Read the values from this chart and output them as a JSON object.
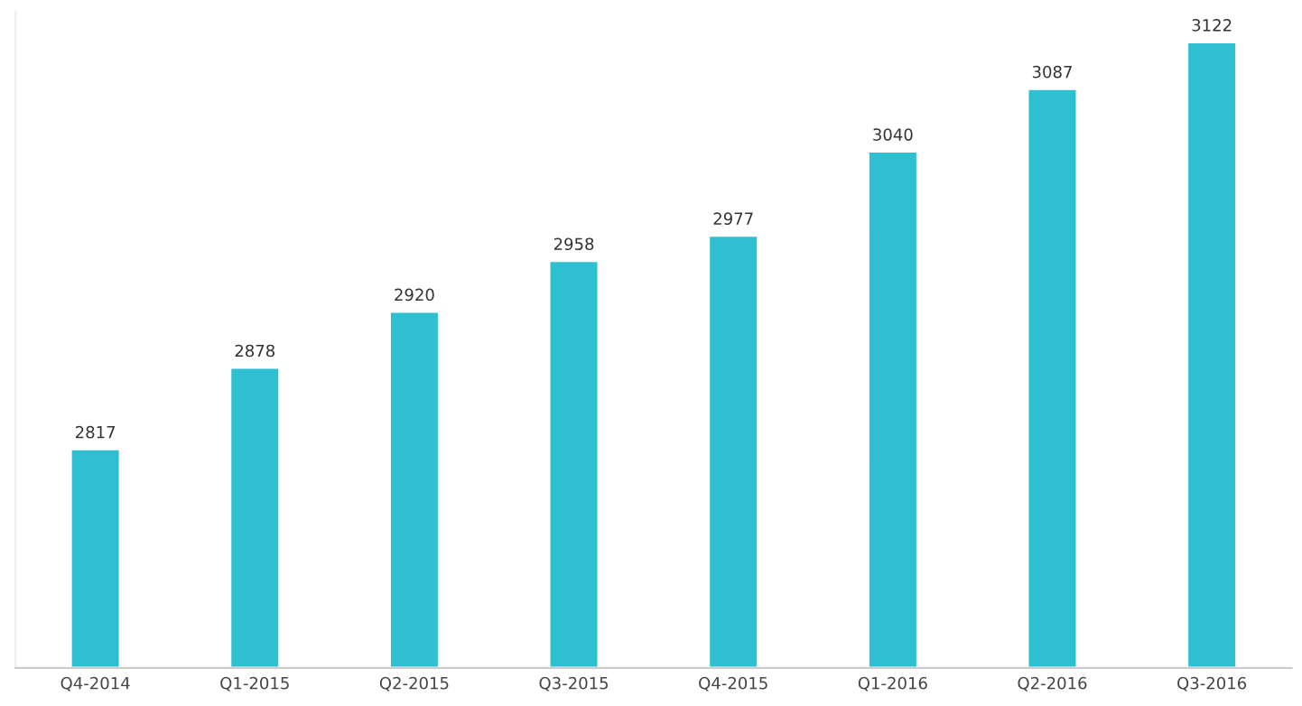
{
  "chart_data": {
    "type": "bar",
    "categories": [
      "Q4-2014",
      "Q1-2015",
      "Q2-2015",
      "Q3-2015",
      "Q4-2015",
      "Q1-2016",
      "Q2-2016",
      "Q3-2016"
    ],
    "values": [
      2817,
      2878,
      2920,
      2958,
      2977,
      3040,
      3087,
      3122
    ],
    "color": "#2ebfd0",
    "ylim": [
      2653,
      3145
    ],
    "data_labels": true,
    "tick_labels": "x",
    "grid": false,
    "legend": false
  }
}
